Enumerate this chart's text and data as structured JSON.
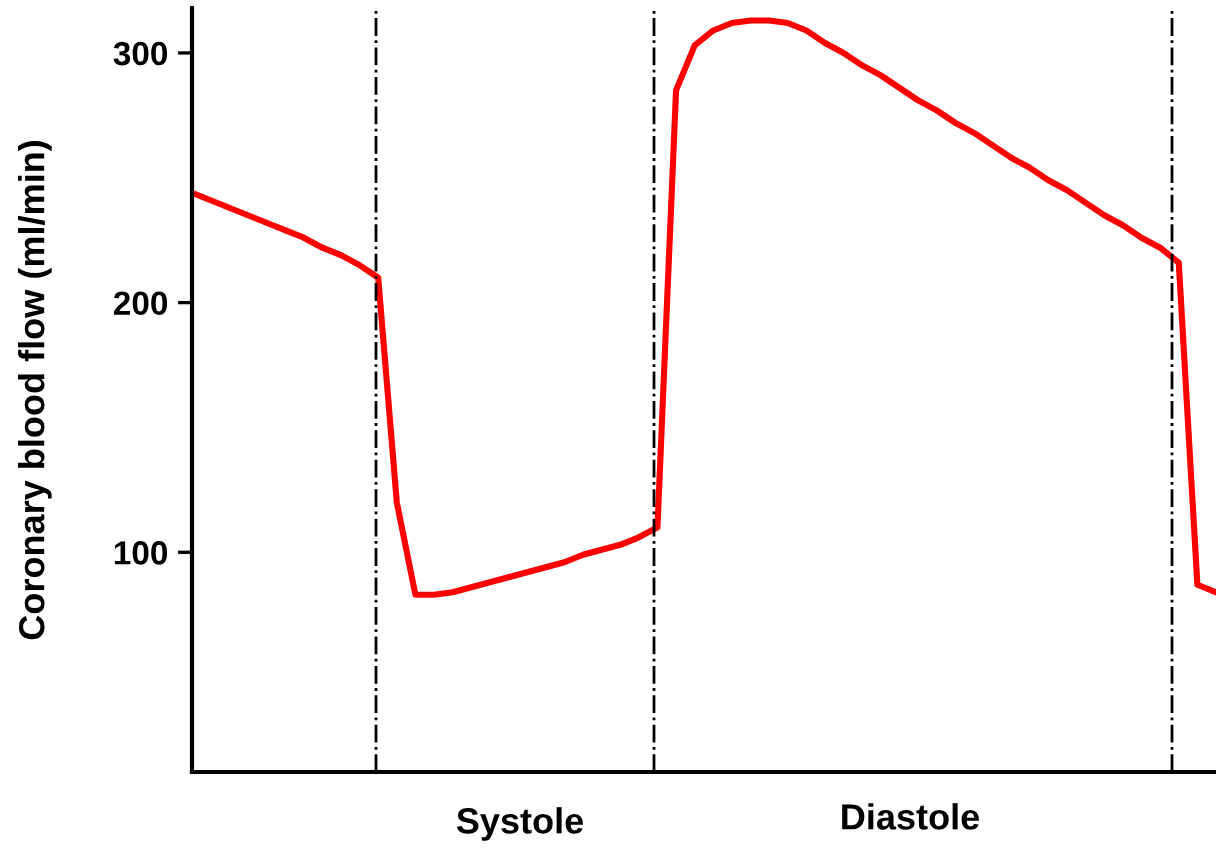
{
  "chart_data": {
    "type": "line",
    "ylabel": "Coronary blood flow (ml/min)",
    "categories": [
      null,
      null,
      null,
      null,
      null,
      null,
      null,
      null,
      null,
      null,
      null,
      null,
      null,
      null,
      null,
      null,
      null,
      null,
      null,
      null,
      null,
      null,
      null,
      null,
      null,
      null,
      null,
      null,
      null,
      null,
      null,
      null,
      null,
      null,
      null,
      null,
      null,
      null,
      null,
      null,
      null,
      null,
      null,
      null,
      null,
      null,
      null,
      null,
      null,
      null,
      null,
      null,
      null,
      null,
      null,
      null
    ],
    "series": [
      {
        "color": "#ff0000",
        "values": [
          244,
          241,
          238,
          235,
          232,
          229,
          226,
          222,
          219,
          215,
          210,
          120,
          83,
          83,
          84,
          86,
          88,
          90,
          92,
          94,
          96,
          99,
          101,
          103,
          106,
          110,
          285,
          303,
          309,
          312,
          313,
          313,
          312,
          309,
          304,
          300,
          295,
          291,
          286,
          281,
          277,
          272,
          268,
          263,
          258,
          254,
          249,
          245,
          240,
          235,
          231,
          226,
          222,
          216,
          87,
          84
        ]
      }
    ],
    "ylim": [
      12,
      318
    ],
    "yticks": [
      100,
      200,
      300
    ],
    "annotations": [
      "Systole",
      "Diastole"
    ],
    "tick_labels": "y",
    "grid": false,
    "marker": "none",
    "line_style": "solid"
  }
}
